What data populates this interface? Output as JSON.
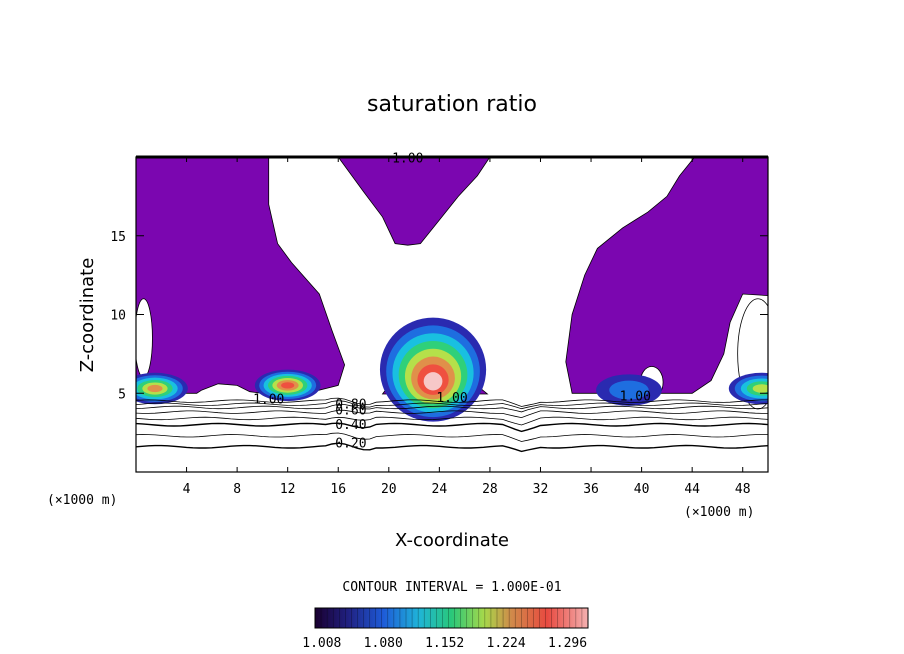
{
  "chart_data": {
    "type": "contour",
    "title": "saturation ratio",
    "xlabel": "X-coordinate",
    "ylabel": "Z-coordinate",
    "x_unit_label": "(×1000 m)",
    "y_unit_label": "(×1000 m)",
    "xlim": [
      0,
      50
    ],
    "ylim": [
      0,
      20
    ],
    "x_ticks": [
      4,
      8,
      12,
      16,
      20,
      24,
      28,
      32,
      36,
      40,
      44,
      48
    ],
    "y_ticks": [
      5,
      10,
      15
    ],
    "contour_interval_text": "CONTOUR INTERVAL = 1.000E-01",
    "colorbar_ticks": [
      "1.008",
      "1.080",
      "1.152",
      "1.224",
      "1.296"
    ],
    "colorbar_range": [
      1.0,
      1.32
    ],
    "colors": {
      "saturated_fill": "#7b06b0",
      "background": "#ffffff",
      "contour_line": "#000000"
    },
    "contour_labels": [
      {
        "text": "1.00",
        "x": 21.5,
        "y": 19.9
      },
      {
        "text": "1.00",
        "x": 10.5,
        "y": 4.6
      },
      {
        "text": "1.00",
        "x": 25.0,
        "y": 4.7
      },
      {
        "text": "1.00",
        "x": 39.5,
        "y": 4.8
      },
      {
        "text": "0.80",
        "x": 17.0,
        "y": 4.3
      },
      {
        "text": "0.60",
        "x": 17.0,
        "y": 3.9
      },
      {
        "text": "0.40",
        "x": 17.0,
        "y": 3.0
      },
      {
        "text": "0.20",
        "x": 17.0,
        "y": 1.8
      }
    ],
    "subsaturated_levels": [
      0.2,
      0.3,
      0.4,
      0.5,
      0.6,
      0.7,
      0.8,
      0.9
    ],
    "supersaturated_cores": [
      {
        "x_center": 1.5,
        "z_center": 5.3,
        "max": 1.25
      },
      {
        "x_center": 12.0,
        "z_center": 5.5,
        "max": 1.3
      },
      {
        "x_center": 23.5,
        "z_center": 5.6,
        "max": 1.35
      },
      {
        "x_center": 39.0,
        "z_center": 5.2,
        "max": 1.1
      },
      {
        "x_center": 49.5,
        "z_center": 5.3,
        "max": 1.2
      }
    ]
  }
}
